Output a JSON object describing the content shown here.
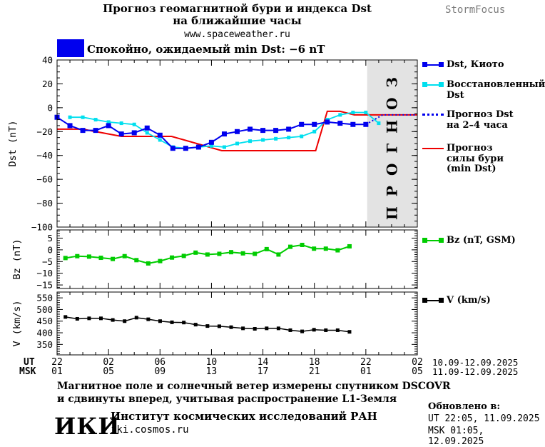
{
  "header": {
    "title_line1": "Прогноз геомагнитной бури и индекса Dst",
    "title_line2": "на ближайшие часы",
    "site": "www.spaceweather.ru",
    "brand": "StormFocus"
  },
  "status": {
    "text": "Спокойно, ожидаемый min Dst: −6 nT",
    "box_color": "#0000ee"
  },
  "chart_data": [
    {
      "type": "line",
      "panel": "dst",
      "ylabel": "Dst (nT)",
      "ylim": [
        -100,
        40
      ],
      "yticks": [
        40,
        20,
        0,
        -20,
        -40,
        -60,
        -80,
        -100
      ],
      "grid": false,
      "forecast_band": {
        "start_hour": 24.1,
        "end_hour": 28,
        "label": "ПРОГНОЗ",
        "fill": "#e3e3e3",
        "label_color": "#c8c8c8"
      },
      "draw_order": [
        3,
        1,
        0,
        2
      ],
      "series": [
        {
          "id": "dst-kyoto",
          "name": "Dst, Киото",
          "color": "#0000ee",
          "width": 2,
          "marker_size": 7,
          "x0": 0,
          "dx": 1,
          "values": [
            -8,
            -15,
            -19,
            -19,
            -15,
            -22,
            -21,
            -17,
            -23,
            -34,
            -34,
            -33,
            -29,
            -22,
            -20,
            -18,
            -19,
            -19,
            -18,
            -14,
            -14,
            -12,
            -13,
            -14,
            -14
          ]
        },
        {
          "id": "dst-restored",
          "name": "Восстановленный Dst",
          "color": "#00dfee",
          "width": 1.8,
          "marker_size": 5,
          "x0": 1,
          "dx": 1,
          "values": [
            -8,
            -8,
            -10,
            -12,
            -13,
            -14,
            -21,
            -27,
            -33,
            -34,
            -33,
            -32,
            -33,
            -30,
            -28,
            -27,
            -26,
            -25,
            -24,
            -20,
            -10,
            -6,
            -4,
            -4,
            -13
          ]
        },
        {
          "id": "dst-forecast",
          "name": "Прогноз Dst на 2–4 часа",
          "color": "#0000ee",
          "width": 2,
          "style": "dotted",
          "marker_size": 0,
          "points": [
            [
              24,
              -14
            ],
            [
              25.3,
              -6
            ],
            [
              28,
              -6
            ]
          ]
        },
        {
          "id": "storm-forecast",
          "name": "Прогноз силы бури (min Dst)",
          "color": "#ee0000",
          "width": 2,
          "marker_size": 0,
          "points": [
            [
              0,
              -18
            ],
            [
              2,
              -18
            ],
            [
              5,
              -24
            ],
            [
              8.9,
              -24
            ],
            [
              12.8,
              -36
            ],
            [
              20.1,
              -36
            ],
            [
              21,
              -3
            ],
            [
              22,
              -3
            ],
            [
              23.1,
              -6
            ],
            [
              28,
              -6
            ]
          ]
        }
      ]
    },
    {
      "type": "line",
      "panel": "bz",
      "ylabel": "Bz (nT)",
      "ylim": [
        -16.5,
        8.5
      ],
      "yticks": [
        5,
        0,
        -5,
        -10,
        -15
      ],
      "grid": false,
      "series": [
        {
          "id": "bz",
          "name": "Bz (nT, GSM)",
          "color": "#00cc00",
          "width": 2,
          "marker_size": 6,
          "x0": 0.65,
          "dx": 0.92,
          "values": [
            -3.5,
            -2.7,
            -2.9,
            -3.4,
            -3.9,
            -2.7,
            -4.4,
            -5.8,
            -4.8,
            -3.3,
            -2.6,
            -1.2,
            -2,
            -1.7,
            -1,
            -1.5,
            -1.7,
            0.3,
            -2,
            1.3,
            2.1,
            0.5,
            0.5,
            -0.2,
            1.5
          ]
        }
      ]
    },
    {
      "type": "line",
      "panel": "v",
      "ylabel": "V (km/s)",
      "ylim": [
        305,
        575
      ],
      "yticks": [
        550,
        500,
        450,
        400,
        350
      ],
      "grid": false,
      "series": [
        {
          "id": "v",
          "name": "V (km/s)",
          "color": "#000000",
          "width": 1.5,
          "marker_size": 5,
          "x0": 0.65,
          "dx": 0.92,
          "values": [
            468,
            460,
            462,
            462,
            455,
            450,
            465,
            458,
            450,
            445,
            444,
            435,
            429,
            428,
            424,
            419,
            417,
            419,
            419,
            411,
            406,
            413,
            411,
            411,
            404
          ]
        }
      ]
    }
  ],
  "axis": {
    "ut_label": "UT",
    "msk_label": "MSK",
    "ut_hours": [
      "22",
      "02",
      "06",
      "10",
      "14",
      "18",
      "22",
      "02"
    ],
    "msk_hours": [
      "01",
      "05",
      "09",
      "13",
      "17",
      "21",
      "01",
      "05"
    ],
    "ut_dates": "10.09-12.09.2025",
    "msk_dates": "11.09-12.09.2025"
  },
  "legend": {
    "dst_kyoto": {
      "label": "Dst, Киото",
      "color": "#0000ee"
    },
    "restored": {
      "label_line1": "Восстановленный",
      "label_line2": "Dst",
      "color": "#00dfee"
    },
    "forecast_dst": {
      "label_line1": "Прогноз Dst",
      "label_line2": "на 2–4 часа",
      "color": "#0000ee"
    },
    "storm": {
      "label_line1": "Прогноз",
      "label_line2": "силы бури",
      "label_line3": "(min Dst)",
      "color": "#ee0000"
    },
    "bz": {
      "label": "Bz (nT, GSM)",
      "color": "#00cc00"
    },
    "v": {
      "label": "V (km/s)",
      "color": "#000000"
    }
  },
  "footnote": {
    "line1": "Магнитное поле и солнечный ветер измерены спутником DSCOVR",
    "line2": "и сдвинуты вперед, учитывая распространение L1-Земля"
  },
  "footer": {
    "logo": "ИКИ",
    "institute": "Институт космических исследований РАН",
    "site": "iki.cosmos.ru",
    "updated_title": "Обновлено в:",
    "updated_ut": "UT  22:05, 11.09.2025",
    "updated_msk": "MSK 01:05, 12.09.2025"
  }
}
